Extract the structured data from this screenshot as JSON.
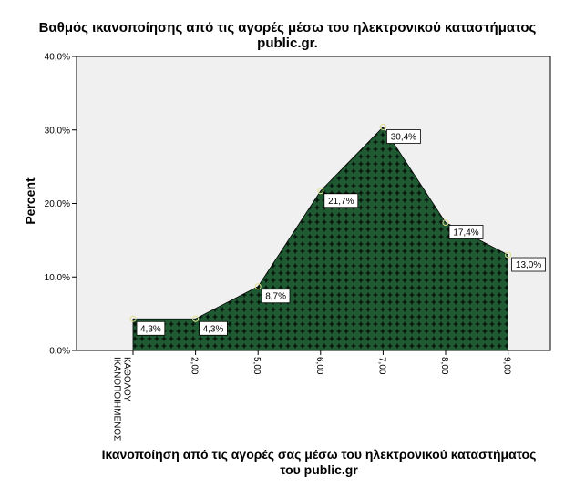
{
  "chart_data": {
    "type": "area",
    "title": "Βαθμός ικανοποίησης από τις αγορές μέσω του ηλεκτρονικού καταστήματος public.gr.",
    "title_lines": [
      "Βαθμός ικανοποίησης από τις αγορές μέσω του ηλεκτρονικού καταστήματος",
      "public.gr."
    ],
    "xlabel": "Ικανοποίηση από τις αγορές σας μέσω του ηλεκτρονικού καταστήματος του public.gr",
    "xlabel_lines": [
      "Ικανοποίηση από τις αγορές σας μέσω του ηλεκτρονικού καταστήματος",
      "του public.gr"
    ],
    "ylabel": "Percent",
    "categories": [
      "ΚΑΘΟΛΟΥ ΙΚΑΝΟΠΟΙΗΜΕΝΟΣ",
      "2,00",
      "5,00",
      "6,00",
      "7,00",
      "8,00",
      "9,00"
    ],
    "category_lines": [
      [
        "ΚΑΘΟΛΟΥ",
        "ΙΚΑΝΟΠΟΙΗΜΕΝΟΣ"
      ],
      [
        "2,00"
      ],
      [
        "5,00"
      ],
      [
        "6,00"
      ],
      [
        "7,00"
      ],
      [
        "8,00"
      ],
      [
        "9,00"
      ]
    ],
    "values": [
      4.3,
      4.3,
      8.7,
      21.7,
      30.4,
      17.4,
      13.0
    ],
    "data_labels": [
      "4,3%",
      "4,3%",
      "8,7%",
      "21,7%",
      "30,4%",
      "17,4%",
      "13,0%"
    ],
    "yticks": [
      0,
      10,
      20,
      30,
      40
    ],
    "ytick_labels": [
      "0,0%",
      "10,0%",
      "20,0%",
      "30,0%",
      "40,0%"
    ],
    "ylim": [
      0,
      40
    ],
    "grid": false,
    "legend": "none",
    "colors": {
      "fill": "#1f5a33",
      "pattern": "#000000",
      "plot_background": "#f0f0f0",
      "marker": "#dede8c"
    }
  }
}
